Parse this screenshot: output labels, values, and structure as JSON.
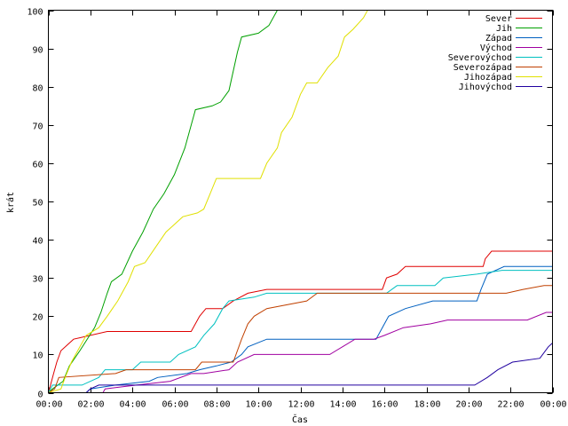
{
  "chart_data": {
    "type": "line",
    "xlabel": "Čas",
    "ylabel": "krát",
    "xlim": [
      0,
      24
    ],
    "ylim": [
      0,
      100
    ],
    "xticks": [
      {
        "value": 0,
        "label": "00:00"
      },
      {
        "value": 2,
        "label": "02:00"
      },
      {
        "value": 4,
        "label": "04:00"
      },
      {
        "value": 6,
        "label": "06:00"
      },
      {
        "value": 8,
        "label": "08:00"
      },
      {
        "value": 10,
        "label": "10:00"
      },
      {
        "value": 12,
        "label": "12:00"
      },
      {
        "value": 14,
        "label": "14:00"
      },
      {
        "value": 16,
        "label": "16:00"
      },
      {
        "value": 18,
        "label": "18:00"
      },
      {
        "value": 20,
        "label": "20:00"
      },
      {
        "value": 22,
        "label": "22:00"
      },
      {
        "value": 24,
        "label": "00:00"
      }
    ],
    "yticks": [
      0,
      10,
      20,
      30,
      40,
      50,
      60,
      70,
      80,
      90,
      100
    ],
    "grid": false,
    "legend_position": "top-right",
    "series": [
      {
        "name": "Sever",
        "color": "#e00000",
        "points": [
          [
            0,
            0
          ],
          [
            0.1,
            2
          ],
          [
            0.25,
            5
          ],
          [
            0.4,
            8
          ],
          [
            0.6,
            11
          ],
          [
            1.2,
            14
          ],
          [
            2.8,
            16
          ],
          [
            6.8,
            16
          ],
          [
            7.2,
            20
          ],
          [
            7.5,
            22
          ],
          [
            8.3,
            22
          ],
          [
            8.8,
            24
          ],
          [
            9.5,
            26
          ],
          [
            10.4,
            27
          ],
          [
            15.9,
            27
          ],
          [
            16.1,
            30
          ],
          [
            16.6,
            31
          ],
          [
            17.0,
            33
          ],
          [
            20.7,
            33
          ],
          [
            20.8,
            35
          ],
          [
            21.1,
            37
          ],
          [
            24,
            37
          ]
        ]
      },
      {
        "name": "Jih",
        "color": "#00a000",
        "points": [
          [
            0,
            0
          ],
          [
            0.2,
            1
          ],
          [
            0.7,
            3
          ],
          [
            1.0,
            7
          ],
          [
            1.5,
            11
          ],
          [
            2.2,
            17
          ],
          [
            2.5,
            21
          ],
          [
            2.8,
            26
          ],
          [
            3.0,
            29
          ],
          [
            3.5,
            31
          ],
          [
            4.0,
            37
          ],
          [
            4.5,
            42
          ],
          [
            5.0,
            48
          ],
          [
            5.5,
            52
          ],
          [
            6.0,
            57
          ],
          [
            6.5,
            64
          ],
          [
            7.0,
            74
          ],
          [
            7.8,
            75
          ],
          [
            8.2,
            76
          ],
          [
            8.6,
            79
          ],
          [
            9.0,
            89
          ],
          [
            9.2,
            93
          ],
          [
            10.0,
            94
          ],
          [
            10.5,
            96
          ],
          [
            10.9,
            100
          ],
          [
            24,
            100
          ]
        ]
      },
      {
        "name": "Západ",
        "color": "#0060c0",
        "points": [
          [
            0,
            0
          ],
          [
            1.8,
            0
          ],
          [
            2.0,
            1
          ],
          [
            3.2,
            2
          ],
          [
            4.8,
            3
          ],
          [
            5.2,
            4
          ],
          [
            6.6,
            5
          ],
          [
            7.2,
            6
          ],
          [
            8.0,
            7
          ],
          [
            8.7,
            8
          ],
          [
            9.2,
            10
          ],
          [
            9.5,
            12
          ],
          [
            10.4,
            14
          ],
          [
            15.6,
            14
          ],
          [
            15.9,
            17
          ],
          [
            16.2,
            20
          ],
          [
            17.0,
            22
          ],
          [
            18.3,
            24
          ],
          [
            20.4,
            24
          ],
          [
            20.6,
            27
          ],
          [
            20.9,
            31
          ],
          [
            21.7,
            33
          ],
          [
            24,
            33
          ],
          [
            24,
            35
          ]
        ]
      },
      {
        "name": "Východ",
        "color": "#a000a0",
        "points": [
          [
            0,
            0
          ],
          [
            2.6,
            0
          ],
          [
            2.7,
            1
          ],
          [
            4.2,
            2
          ],
          [
            5.8,
            3
          ],
          [
            6.8,
            5
          ],
          [
            7.4,
            5
          ],
          [
            8.6,
            6
          ],
          [
            9.0,
            8
          ],
          [
            9.8,
            10
          ],
          [
            13.4,
            10
          ],
          [
            14.0,
            12
          ],
          [
            14.6,
            14
          ],
          [
            15.5,
            14
          ],
          [
            16.0,
            15
          ],
          [
            16.9,
            17
          ],
          [
            18.2,
            18
          ],
          [
            19.0,
            19
          ],
          [
            22.8,
            19
          ],
          [
            23.7,
            21
          ],
          [
            24,
            21
          ]
        ]
      },
      {
        "name": "Severovýchod",
        "color": "#00c0c0",
        "points": [
          [
            0,
            0
          ],
          [
            0.2,
            2
          ],
          [
            1.6,
            2
          ],
          [
            2.4,
            4
          ],
          [
            2.7,
            6
          ],
          [
            4.0,
            6
          ],
          [
            4.4,
            8
          ],
          [
            5.8,
            8
          ],
          [
            6.2,
            10
          ],
          [
            7.0,
            12
          ],
          [
            7.4,
            15
          ],
          [
            7.9,
            18
          ],
          [
            8.3,
            22
          ],
          [
            8.6,
            24
          ],
          [
            9.8,
            25
          ],
          [
            10.4,
            26
          ],
          [
            12.4,
            26
          ],
          [
            16.1,
            26
          ],
          [
            16.6,
            28
          ],
          [
            18.4,
            28
          ],
          [
            18.8,
            30
          ],
          [
            20.4,
            31
          ],
          [
            21.6,
            32
          ],
          [
            24,
            32
          ]
        ]
      },
      {
        "name": "Severozápad",
        "color": "#c04000",
        "points": [
          [
            0,
            0
          ],
          [
            0.3,
            1
          ],
          [
            0.5,
            4
          ],
          [
            3.2,
            5
          ],
          [
            3.7,
            6
          ],
          [
            7.0,
            6
          ],
          [
            7.3,
            8
          ],
          [
            8.8,
            8
          ],
          [
            9.2,
            14
          ],
          [
            9.5,
            18
          ],
          [
            9.8,
            20
          ],
          [
            10.4,
            22
          ],
          [
            12.3,
            24
          ],
          [
            12.8,
            26
          ],
          [
            21.8,
            26
          ],
          [
            22.6,
            27
          ],
          [
            23.6,
            28
          ],
          [
            24,
            28
          ]
        ]
      },
      {
        "name": "Jihozápad",
        "color": "#e0e000",
        "points": [
          [
            0,
            0
          ],
          [
            0.6,
            1
          ],
          [
            0.8,
            4
          ],
          [
            1.1,
            8
          ],
          [
            1.5,
            12
          ],
          [
            1.8,
            15
          ],
          [
            2.4,
            17
          ],
          [
            2.8,
            20
          ],
          [
            3.3,
            24
          ],
          [
            3.8,
            29
          ],
          [
            4.1,
            33
          ],
          [
            4.6,
            34
          ],
          [
            5.1,
            38
          ],
          [
            5.6,
            42
          ],
          [
            6.0,
            44
          ],
          [
            6.4,
            46
          ],
          [
            7.1,
            47
          ],
          [
            7.4,
            48
          ],
          [
            7.7,
            52
          ],
          [
            8.0,
            56
          ],
          [
            10.1,
            56
          ],
          [
            10.4,
            60
          ],
          [
            10.9,
            64
          ],
          [
            11.1,
            68
          ],
          [
            11.6,
            72
          ],
          [
            12.0,
            78
          ],
          [
            12.3,
            81
          ],
          [
            12.8,
            81
          ],
          [
            13.3,
            85
          ],
          [
            13.8,
            88
          ],
          [
            14.1,
            93
          ],
          [
            14.5,
            95
          ],
          [
            15.0,
            98
          ],
          [
            15.2,
            100
          ],
          [
            24,
            100
          ]
        ]
      },
      {
        "name": "Jihovýchod",
        "color": "#2000a0",
        "points": [
          [
            0,
            0
          ],
          [
            1.8,
            0
          ],
          [
            2.0,
            1
          ],
          [
            2.4,
            2
          ],
          [
            20.3,
            2
          ],
          [
            20.9,
            4
          ],
          [
            21.4,
            6
          ],
          [
            22.1,
            8
          ],
          [
            23.4,
            9
          ],
          [
            23.8,
            12
          ],
          [
            24,
            13
          ]
        ]
      }
    ]
  }
}
